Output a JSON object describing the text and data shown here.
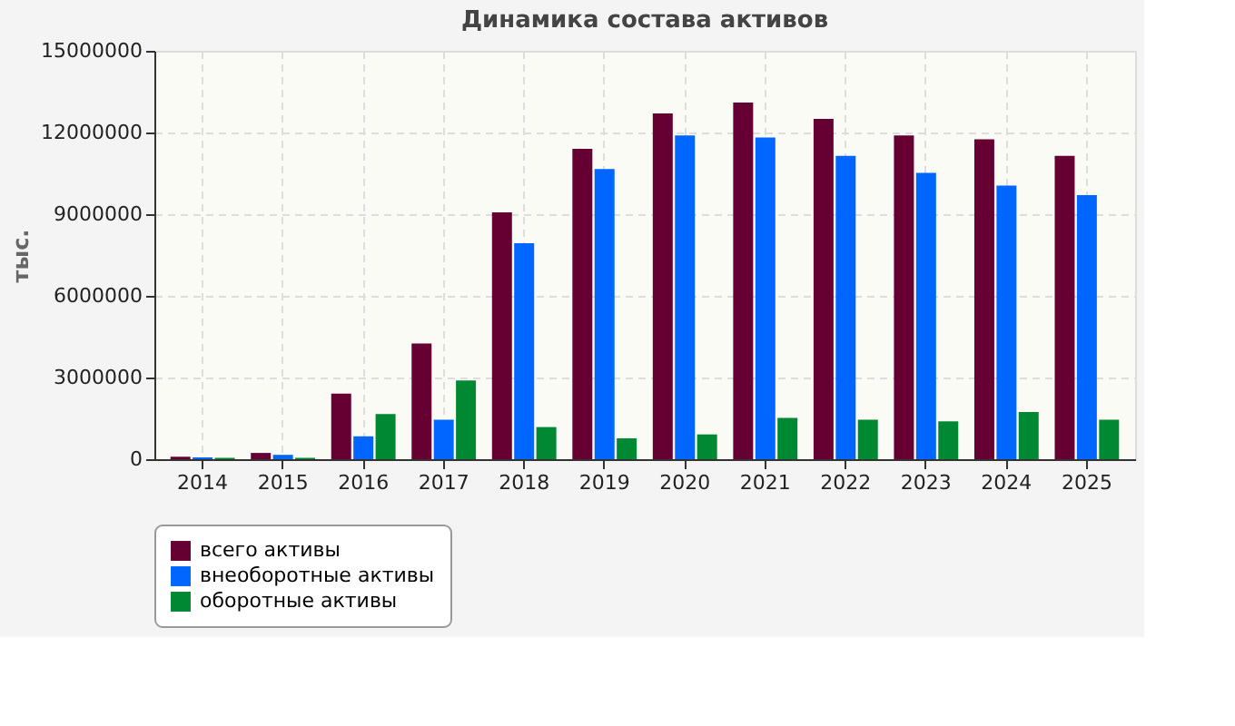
{
  "chart_data": {
    "type": "bar",
    "title": "Динамика состава активов",
    "ylabel": "тыс.",
    "categories": [
      "2014",
      "2015",
      "2016",
      "2017",
      "2018",
      "2019",
      "2020",
      "2021",
      "2022",
      "2023",
      "2024",
      "2025"
    ],
    "series": [
      {
        "name": "всего активы",
        "color": "#660033",
        "values": [
          90000,
          230000,
          2410000,
          4250000,
          9070000,
          11400000,
          12700000,
          13100000,
          12500000,
          11890000,
          11750000,
          11140000
        ]
      },
      {
        "name": "внеоборотные активы",
        "color": "#0066ff",
        "values": [
          70000,
          160000,
          840000,
          1450000,
          7930000,
          10660000,
          11890000,
          11820000,
          11140000,
          10520000,
          10050000,
          9700000
        ]
      },
      {
        "name": "оборотные активы",
        "color": "#008833",
        "values": [
          50000,
          50000,
          1660000,
          2890000,
          1180000,
          770000,
          910000,
          1520000,
          1450000,
          1390000,
          1730000,
          1450000
        ]
      }
    ],
    "ylim": [
      0,
      15000000
    ],
    "yticks": [
      0,
      3000000,
      6000000,
      9000000,
      12000000,
      15000000
    ],
    "grid": true,
    "legend": "bottom"
  }
}
